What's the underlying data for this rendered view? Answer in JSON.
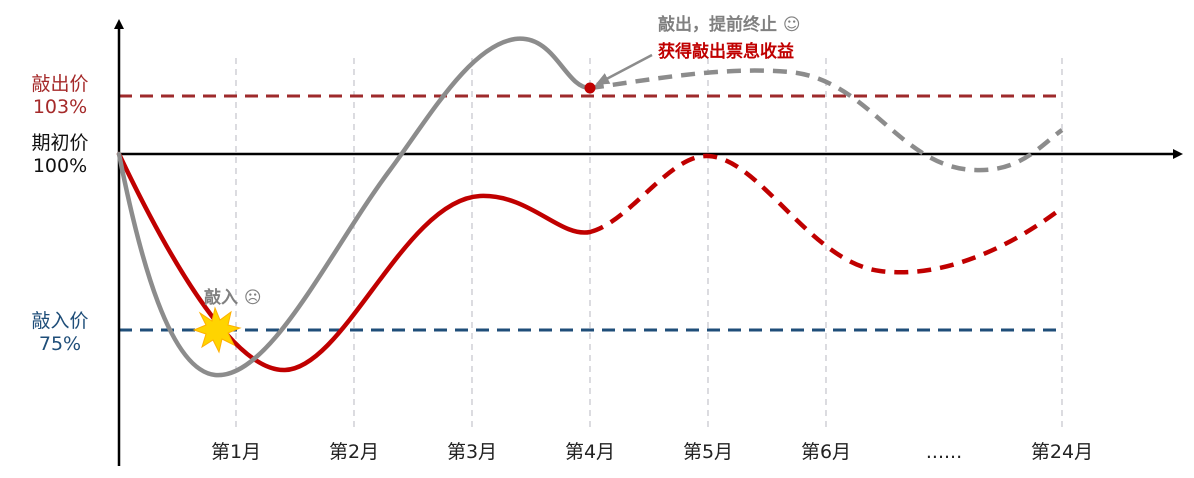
{
  "colors": {
    "knock_out": "#9e2a2b",
    "knock_in": "#1f4e79",
    "grey_path": "#8c8c8c",
    "red_path": "#c00000",
    "axis": "#000000",
    "grid": "#c8c8d0",
    "burst": "#ffd400"
  },
  "levels": {
    "knock_out": {
      "label": "敲出价",
      "value": "103%"
    },
    "initial": {
      "label": "期初价",
      "value": "100%"
    },
    "knock_in": {
      "label": "敲入价",
      "value": "75%"
    }
  },
  "x_axis": {
    "ticks": [
      "第1月",
      "第2月",
      "第3月",
      "第4月",
      "第5月",
      "第6月",
      "......",
      "第24月"
    ]
  },
  "annotations": {
    "knock_out_line1": "敲出，提前终止 ☺",
    "knock_out_line2": "获得敲出票息收益",
    "knock_in": "敲入 ☹"
  }
}
